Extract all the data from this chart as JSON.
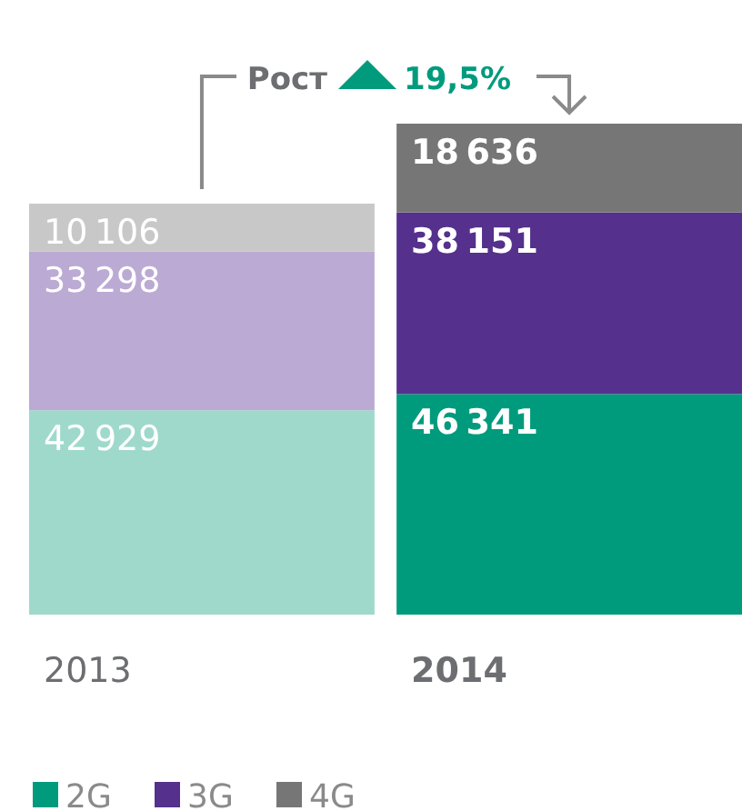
{
  "chart_data": {
    "type": "bar",
    "stacked": true,
    "data_labels": true,
    "legend": "bottom left",
    "categories": [
      "2013",
      "2014"
    ],
    "series": [
      {
        "name": "2G",
        "color": "#009b7d",
        "colors": [
          "#9fd9cc",
          "#009b7d"
        ],
        "values": [
          42929,
          46341
        ]
      },
      {
        "name": "3G",
        "color": "#55308d",
        "colors": [
          "#bbaad4",
          "#55308d"
        ],
        "values": [
          33298,
          38151
        ]
      },
      {
        "name": "4G",
        "color": "#767676",
        "colors": [
          "#c8c8c8",
          "#767676"
        ],
        "values": [
          10106,
          18636
        ]
      }
    ],
    "annotations": [
      "Рост",
      "19,5%"
    ]
  }
}
